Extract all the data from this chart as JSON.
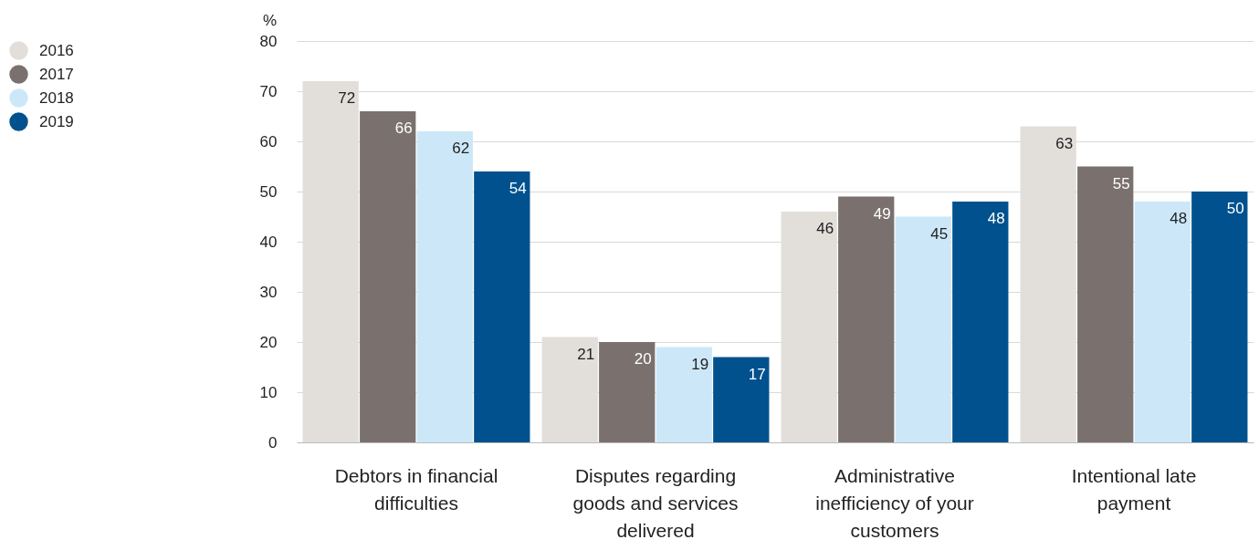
{
  "chart_data": {
    "type": "bar",
    "ylabel": "%",
    "categories": [
      "Debtors in financial difficulties",
      "Disputes regarding goods and services delivered",
      "Administrative inefficiency of your customers",
      "Intentional late payment"
    ],
    "series": [
      {
        "name": "2016",
        "color": "#e2dfdb",
        "values": [
          72,
          21,
          46,
          63
        ]
      },
      {
        "name": "2017",
        "color": "#7a716e",
        "values": [
          66,
          20,
          49,
          55
        ]
      },
      {
        "name": "2018",
        "color": "#cce8f8",
        "values": [
          62,
          19,
          45,
          48
        ]
      },
      {
        "name": "2019",
        "color": "#00518e",
        "values": [
          54,
          17,
          48,
          50
        ]
      }
    ],
    "ylim": [
      0,
      80
    ],
    "yticks": [
      0,
      10,
      20,
      30,
      40,
      50,
      60,
      70,
      80
    ],
    "grid": "y",
    "legend": "top left",
    "data_labels": true
  }
}
